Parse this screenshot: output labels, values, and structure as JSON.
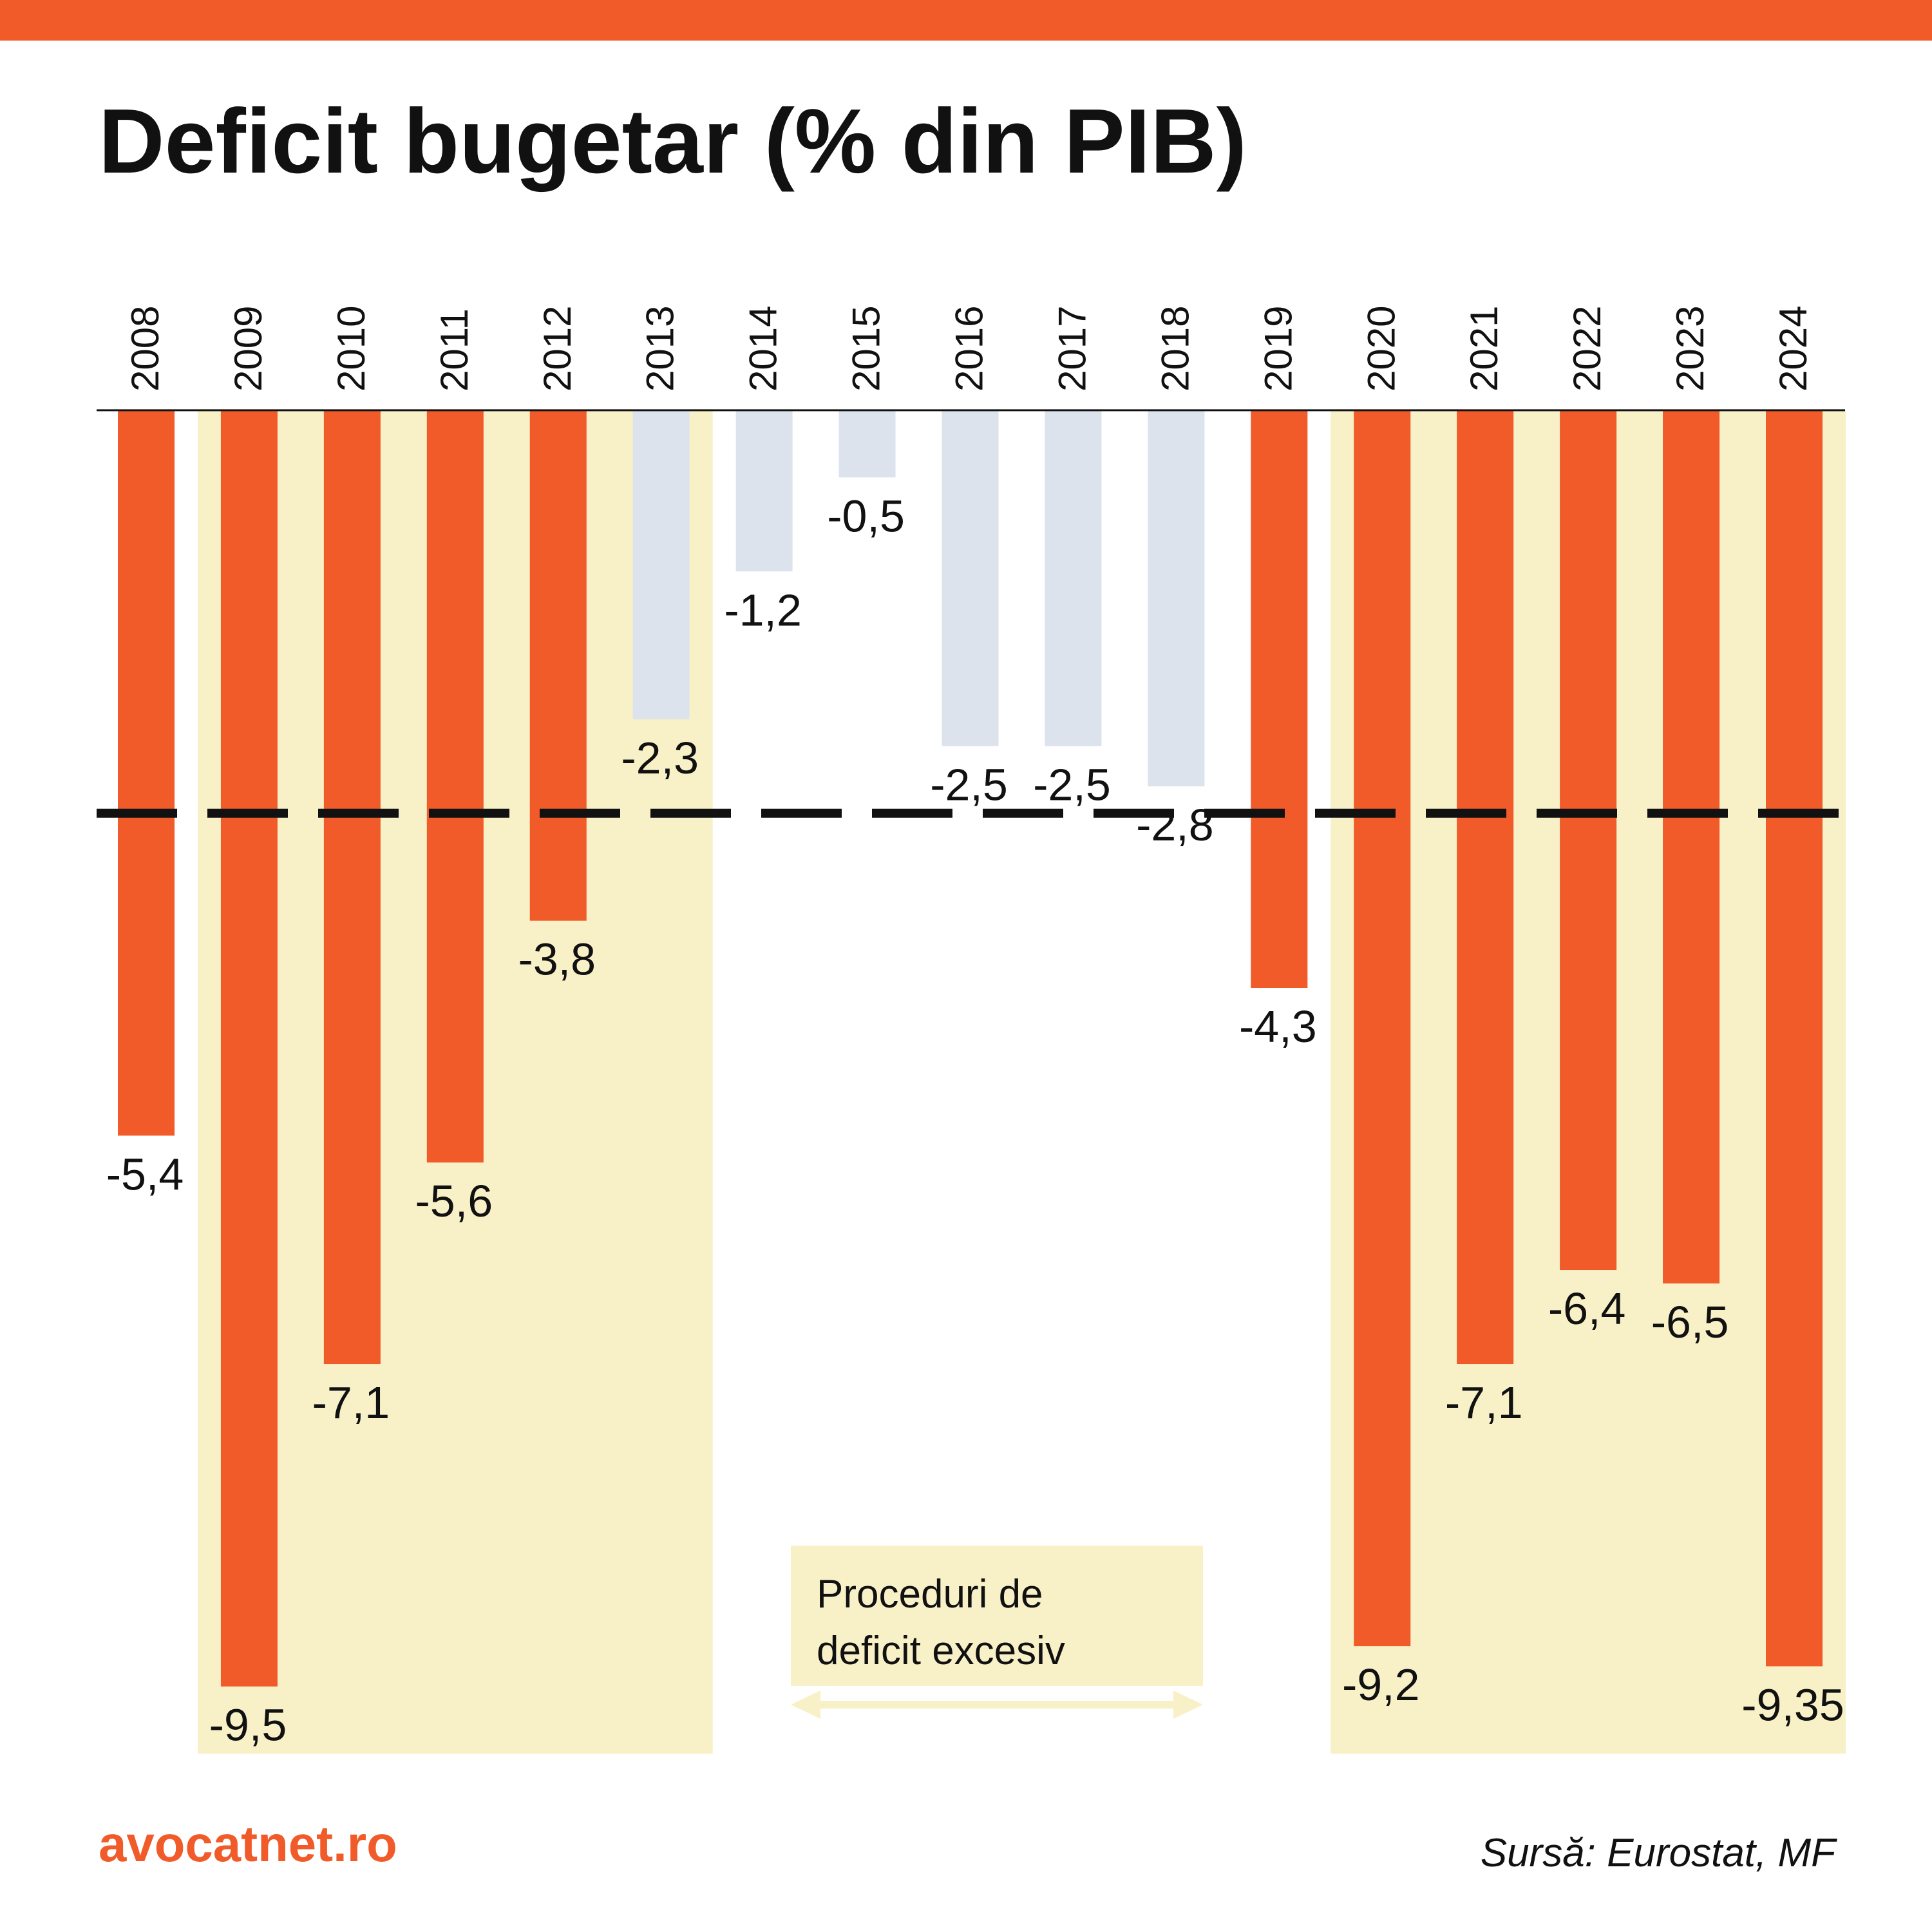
{
  "title": "Deficit bugetar (% din PIB)",
  "brand": "avocatnet.ro",
  "source": "Sursă: Eurostat, MF",
  "legend": {
    "line1": "Proceduri de",
    "line2": "deficit excesiv"
  },
  "colors": {
    "accent": "#f15a29",
    "highlight_bar": "#f15a29",
    "normal_bar": "#dde3ed",
    "edp_band": "#f8f0c7",
    "threshold_line": "#111111",
    "text": "#111111"
  },
  "chart_data": {
    "type": "bar",
    "title": "Deficit bugetar (% din PIB)",
    "categories": [
      "2008",
      "2009",
      "2010",
      "2011",
      "2012",
      "2013",
      "2014",
      "2015",
      "2016",
      "2017",
      "2018",
      "2019",
      "2020",
      "2021",
      "2022",
      "2023",
      "2024"
    ],
    "values": [
      -5.4,
      -9.5,
      -7.1,
      -5.6,
      -3.8,
      -2.3,
      -1.2,
      -0.5,
      -2.5,
      -2.5,
      -2.8,
      -4.3,
      -9.2,
      -7.1,
      -6.4,
      -6.5,
      -9.35
    ],
    "value_labels": [
      "-5,4",
      "-9,5",
      "-7,1",
      "-5,6",
      "-3,8",
      "-2,3",
      "-1,2",
      "-0,5",
      "-2,5",
      "-2,5",
      "-2,8",
      "-4,3",
      "-9,2",
      "-7,1",
      "-6,4",
      "-6,5",
      "-9,35"
    ],
    "bar_color_keys": [
      "highlight_bar",
      "highlight_bar",
      "highlight_bar",
      "highlight_bar",
      "highlight_bar",
      "normal_bar",
      "normal_bar",
      "normal_bar",
      "normal_bar",
      "normal_bar",
      "normal_bar",
      "highlight_bar",
      "highlight_bar",
      "highlight_bar",
      "highlight_bar",
      "highlight_bar",
      "highlight_bar"
    ],
    "threshold": -3,
    "excessive_deficit_periods": [
      [
        "2009",
        "2013"
      ],
      [
        "2020",
        "2024"
      ]
    ],
    "ylim": [
      -10,
      0
    ],
    "xlabel": "",
    "ylabel": "",
    "x_axis_position": "top",
    "grid": false
  }
}
